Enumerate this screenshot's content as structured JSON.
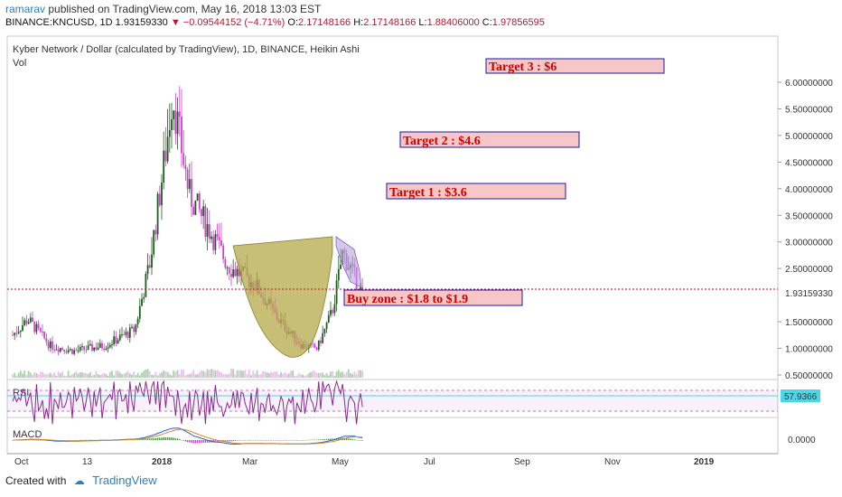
{
  "header": {
    "user": "ramarav",
    "published_text": "published on TradingView.com, May 16, 2018 13:03 EST",
    "symbol": "BINANCE:KNCUSD, 1D",
    "price": "1.93159330",
    "arrow": "▼",
    "change": "−0.09544152 (−4.71%)",
    "o_label": "O:",
    "o_value": "2.17148166",
    "h_label": "H:",
    "h_value": "2.17148166",
    "l_label": "L:",
    "l_value": "1.88406000",
    "c_label": "C:",
    "c_value": "1.97856595"
  },
  "footer": {
    "created_with": "Created with",
    "brand": "TradingView"
  },
  "colors": {
    "bull": "#1f5c1f",
    "bear": "#d23fd2",
    "cup": "#b5aa4a",
    "channel": "#a98bd6",
    "price_line": "#c8102e",
    "rsi": "#8b2a8b",
    "macd_line": "#2a5fbf",
    "signal_line": "#d48a2a",
    "target_fill": "#f7c6c6",
    "target_border": "#1a1aaa",
    "target_text": "#cc0000",
    "rsi_badge": "#4fd6e6"
  },
  "chart_data": {
    "type": "candlestick",
    "title": "Kyber Network / Dollar (calculated by TradingView), 1D, BINANCE, Heikin Ashi",
    "volume_label": "Vol",
    "x_ticks": [
      "Oct",
      "13",
      "2018",
      "Mar",
      "May",
      "Jul",
      "Sep",
      "Nov",
      "2019"
    ],
    "y_ticks": [
      "6.00000000",
      "5.50000000",
      "5.00000000",
      "4.50000000",
      "4.00000000",
      "3.50000000",
      "3.00000000",
      "2.50000000",
      "1.50000000",
      "1.00000000",
      "0.50000000"
    ],
    "ylim": [
      0.5,
      6.0
    ],
    "last_price": 1.9315933,
    "last_price_label": "1.93159330",
    "price_path": [
      {
        "date": "2017-09-25",
        "close": 1.25
      },
      {
        "date": "2017-10-05",
        "close": 1.55
      },
      {
        "date": "2017-10-20",
        "close": 1.05
      },
      {
        "date": "2017-11-05",
        "close": 0.95
      },
      {
        "date": "2017-11-25",
        "close": 1.05
      },
      {
        "date": "2017-12-15",
        "close": 1.35
      },
      {
        "date": "2017-12-25",
        "close": 2.6
      },
      {
        "date": "2018-01-05",
        "close": 4.8
      },
      {
        "date": "2018-01-09",
        "close": 5.8
      },
      {
        "date": "2018-01-20",
        "close": 3.9
      },
      {
        "date": "2018-02-05",
        "close": 3.1
      },
      {
        "date": "2018-02-15",
        "close": 2.55
      },
      {
        "date": "2018-03-05",
        "close": 2.2
      },
      {
        "date": "2018-03-20",
        "close": 1.55
      },
      {
        "date": "2018-04-05",
        "close": 1.05
      },
      {
        "date": "2018-04-15",
        "close": 1.0
      },
      {
        "date": "2018-04-25",
        "close": 1.7
      },
      {
        "date": "2018-05-02",
        "close": 2.8
      },
      {
        "date": "2018-05-08",
        "close": 2.45
      },
      {
        "date": "2018-05-16",
        "close": 1.93
      }
    ],
    "annotations": [
      {
        "text": "Target 3 : $6",
        "price": 5.85
      },
      {
        "text": "Target 2 :  $4.6",
        "price": 4.55
      },
      {
        "text": "Target 1 : $3.6",
        "price": 3.72
      },
      {
        "text": "Buy zone : $1.8 to $1.9",
        "price": 1.85
      }
    ],
    "rsi": {
      "label": "RSI",
      "value_label": "57.9366"
    },
    "macd": {
      "label": "MACD",
      "tick": "0.0000"
    }
  }
}
